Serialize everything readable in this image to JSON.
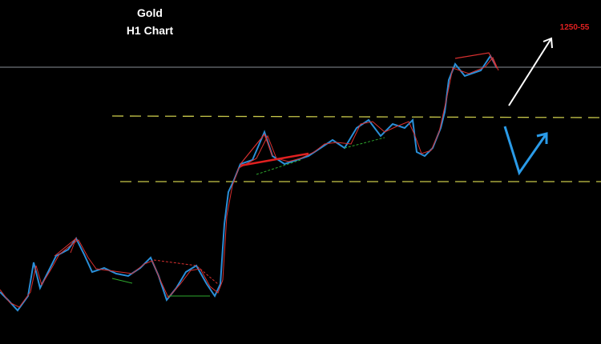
{
  "header": {
    "title": "Gold",
    "subtitle": "H1 Chart"
  },
  "annotations": {
    "target": "1250-55"
  }
}
